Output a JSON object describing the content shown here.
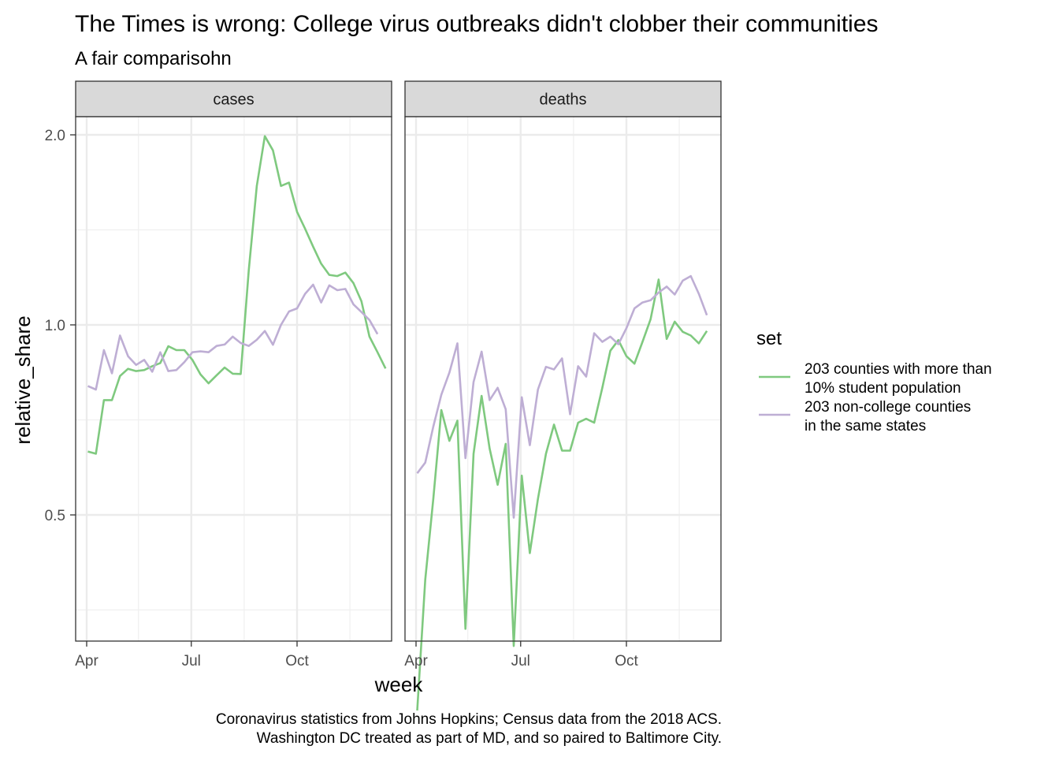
{
  "title": "The Times is wrong: College virus outbreaks didn't clobber their communities",
  "subtitle": "A fair comparisohn",
  "caption": [
    "Coronavirus statistics from Johns Hopkins; Census data from the 2018 ACS.",
    "Washington DC treated as part of MD, and so paired to Baltimore City."
  ],
  "chart_data": {
    "type": "line",
    "xlabel": "week",
    "ylabel": "relative_share",
    "x_ticks": [
      "Apr",
      "Jul",
      "Oct"
    ],
    "y_ticks": [
      "0.5",
      "1.0",
      "2.0"
    ],
    "y_scale": "log",
    "grid": true,
    "legend": {
      "title": "set",
      "placement": "right",
      "entries": [
        {
          "lines": [
            "203 counties with more than",
            "10% student population"
          ],
          "color": "#7fc97f"
        },
        {
          "lines": [
            "203 non-college counties",
            "in the same states"
          ],
          "color": "#beaed4"
        }
      ]
    },
    "facets": [
      {
        "label": "cases",
        "series": [
          {
            "name": "203 counties with more than 10% student population",
            "color": "#7fc97f",
            "points": [
              [
                "2020-04-02",
                0.63
              ],
              [
                "2020-04-09",
                0.625
              ],
              [
                "2020-04-16",
                0.76
              ],
              [
                "2020-04-23",
                0.76
              ],
              [
                "2020-04-30",
                0.83
              ],
              [
                "2020-05-07",
                0.852
              ],
              [
                "2020-05-14",
                0.845
              ],
              [
                "2020-05-21",
                0.848
              ],
              [
                "2020-05-28",
                0.86
              ],
              [
                "2020-06-04",
                0.87
              ],
              [
                "2020-06-11",
                0.925
              ],
              [
                "2020-06-18",
                0.912
              ],
              [
                "2020-06-25",
                0.912
              ],
              [
                "2020-07-02",
                0.88
              ],
              [
                "2020-07-09",
                0.835
              ],
              [
                "2020-07-16",
                0.808
              ],
              [
                "2020-07-23",
                0.832
              ],
              [
                "2020-07-30",
                0.856
              ],
              [
                "2020-08-06",
                0.837
              ],
              [
                "2020-08-13",
                0.836
              ],
              [
                "2020-08-20",
                1.22
              ],
              [
                "2020-08-27",
                1.66
              ],
              [
                "2020-09-03",
                1.99
              ],
              [
                "2020-09-10",
                1.89
              ],
              [
                "2020-09-17",
                1.66
              ],
              [
                "2020-09-24",
                1.68
              ],
              [
                "2020-10-01",
                1.51
              ],
              [
                "2020-10-08",
                1.42
              ],
              [
                "2020-10-15",
                1.33
              ],
              [
                "2020-10-22",
                1.25
              ],
              [
                "2020-10-29",
                1.2
              ],
              [
                "2020-11-05",
                1.195
              ],
              [
                "2020-11-12",
                1.21
              ],
              [
                "2020-11-19",
                1.165
              ],
              [
                "2020-11-26",
                1.09
              ],
              [
                "2020-12-03",
                0.958
              ],
              [
                "2020-12-10",
                0.905
              ],
              [
                "2020-12-17",
                0.853
              ]
            ]
          },
          {
            "name": "203 non-college counties in the same states",
            "color": "#beaed4",
            "points": [
              [
                "2020-04-02",
                0.8
              ],
              [
                "2020-04-09",
                0.79
              ],
              [
                "2020-04-16",
                0.912
              ],
              [
                "2020-04-23",
                0.838
              ],
              [
                "2020-04-30",
                0.962
              ],
              [
                "2020-05-07",
                0.892
              ],
              [
                "2020-05-14",
                0.864
              ],
              [
                "2020-05-21",
                0.88
              ],
              [
                "2020-05-28",
                0.843
              ],
              [
                "2020-06-04",
                0.905
              ],
              [
                "2020-06-11",
                0.845
              ],
              [
                "2020-06-18",
                0.848
              ],
              [
                "2020-06-25",
                0.873
              ],
              [
                "2020-07-02",
                0.905
              ],
              [
                "2020-07-09",
                0.908
              ],
              [
                "2020-07-16",
                0.905
              ],
              [
                "2020-07-23",
                0.926
              ],
              [
                "2020-07-30",
                0.931
              ],
              [
                "2020-08-06",
                0.958
              ],
              [
                "2020-08-13",
                0.936
              ],
              [
                "2020-08-20",
                0.926
              ],
              [
                "2020-08-27",
                0.947
              ],
              [
                "2020-09-03",
                0.978
              ],
              [
                "2020-09-10",
                0.93
              ],
              [
                "2020-09-17",
                1.0
              ],
              [
                "2020-09-24",
                1.05
              ],
              [
                "2020-10-01",
                1.062
              ],
              [
                "2020-10-08",
                1.12
              ],
              [
                "2020-10-15",
                1.158
              ],
              [
                "2020-10-22",
                1.085
              ],
              [
                "2020-10-29",
                1.155
              ],
              [
                "2020-11-05",
                1.135
              ],
              [
                "2020-11-12",
                1.14
              ],
              [
                "2020-11-19",
                1.078
              ],
              [
                "2020-11-26",
                1.048
              ],
              [
                "2020-12-03",
                1.018
              ],
              [
                "2020-12-10",
                0.967
              ]
            ]
          }
        ]
      },
      {
        "label": "deaths",
        "series": [
          {
            "name": "203 counties with more than 10% student population",
            "color": "#7fc97f",
            "points": [
              [
                "2020-04-02",
                0.245
              ],
              [
                "2020-04-09",
                0.395
              ],
              [
                "2020-04-16",
                0.53
              ],
              [
                "2020-04-23",
                0.733
              ],
              [
                "2020-04-30",
                0.655
              ],
              [
                "2020-05-07",
                0.705
              ],
              [
                "2020-05-14",
                0.33
              ],
              [
                "2020-05-21",
                0.625
              ],
              [
                "2020-05-28",
                0.772
              ],
              [
                "2020-06-04",
                0.637
              ],
              [
                "2020-06-11",
                0.558
              ],
              [
                "2020-06-18",
                0.648
              ],
              [
                "2020-06-25",
                0.31
              ],
              [
                "2020-07-02",
                0.577
              ],
              [
                "2020-07-09",
                0.435
              ],
              [
                "2020-07-16",
                0.53
              ],
              [
                "2020-07-23",
                0.625
              ],
              [
                "2020-07-30",
                0.695
              ],
              [
                "2020-08-06",
                0.632
              ],
              [
                "2020-08-13",
                0.632
              ],
              [
                "2020-08-20",
                0.7
              ],
              [
                "2020-08-27",
                0.71
              ],
              [
                "2020-09-03",
                0.7
              ],
              [
                "2020-09-10",
                0.795
              ],
              [
                "2020-09-17",
                0.91
              ],
              [
                "2020-09-24",
                0.946
              ],
              [
                "2020-10-01",
                0.892
              ],
              [
                "2020-10-08",
                0.868
              ],
              [
                "2020-10-15",
                0.94
              ],
              [
                "2020-10-22",
                1.02
              ],
              [
                "2020-10-29",
                1.18
              ],
              [
                "2020-11-05",
                0.95
              ],
              [
                "2020-11-12",
                1.012
              ],
              [
                "2020-11-19",
                0.975
              ],
              [
                "2020-11-26",
                0.962
              ],
              [
                "2020-12-03",
                0.935
              ],
              [
                "2020-12-10",
                0.978
              ]
            ]
          },
          {
            "name": "203 non-college counties in the same states",
            "color": "#beaed4",
            "points": [
              [
                "2020-04-02",
                0.582
              ],
              [
                "2020-04-09",
                0.605
              ],
              [
                "2020-04-16",
                0.69
              ],
              [
                "2020-04-23",
                0.775
              ],
              [
                "2020-04-30",
                0.84
              ],
              [
                "2020-05-07",
                0.935
              ],
              [
                "2020-05-14",
                0.615
              ],
              [
                "2020-05-21",
                0.812
              ],
              [
                "2020-05-28",
                0.907
              ],
              [
                "2020-06-04",
                0.76
              ],
              [
                "2020-06-11",
                0.795
              ],
              [
                "2020-06-18",
                0.735
              ],
              [
                "2020-06-25",
                0.495
              ],
              [
                "2020-07-02",
                0.768
              ],
              [
                "2020-07-09",
                0.645
              ],
              [
                "2020-07-16",
                0.79
              ],
              [
                "2020-07-23",
                0.858
              ],
              [
                "2020-07-30",
                0.85
              ],
              [
                "2020-08-06",
                0.885
              ],
              [
                "2020-08-13",
                0.722
              ],
              [
                "2020-08-20",
                0.86
              ],
              [
                "2020-08-27",
                0.828
              ],
              [
                "2020-09-03",
                0.97
              ],
              [
                "2020-09-10",
                0.94
              ],
              [
                "2020-09-17",
                0.958
              ],
              [
                "2020-09-24",
                0.932
              ],
              [
                "2020-10-01",
                0.988
              ],
              [
                "2020-10-08",
                1.062
              ],
              [
                "2020-10-15",
                1.085
              ],
              [
                "2020-10-22",
                1.094
              ],
              [
                "2020-10-29",
                1.125
              ],
              [
                "2020-11-05",
                1.15
              ],
              [
                "2020-11-12",
                1.117
              ],
              [
                "2020-11-19",
                1.175
              ],
              [
                "2020-11-26",
                1.195
              ],
              [
                "2020-12-03",
                1.12
              ],
              [
                "2020-12-10",
                1.036
              ]
            ]
          }
        ]
      }
    ]
  }
}
